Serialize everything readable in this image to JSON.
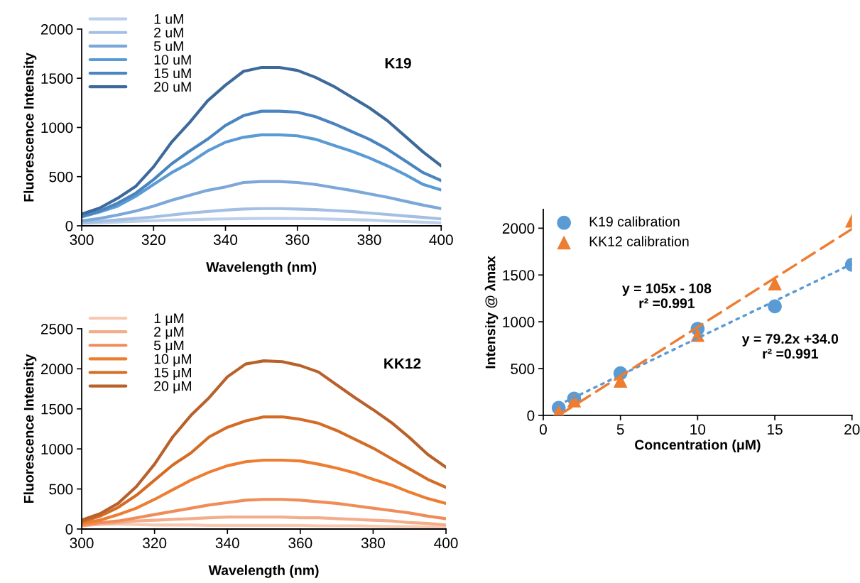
{
  "chart_data": [
    {
      "type": "line",
      "title": "K19",
      "xlabel": "Wavelength (nm)",
      "ylabel": "Fluorescence Intensity",
      "xlim": [
        300,
        400
      ],
      "xticks": [
        300,
        320,
        340,
        360,
        380,
        400
      ],
      "ylim": [
        0,
        2000
      ],
      "yticks": [
        0,
        500,
        1000,
        1500,
        2000
      ],
      "grid": false,
      "legend": "top left",
      "line_style": "solid",
      "marker": "none",
      "x": [
        300,
        305,
        310,
        315,
        320,
        325,
        330,
        335,
        340,
        345,
        350,
        355,
        360,
        365,
        370,
        375,
        380,
        385,
        390,
        395,
        400
      ],
      "series": [
        {
          "name": "1 uM",
          "color": "#bdd0ea",
          "values": [
            25,
            30,
            38,
            45,
            52,
            58,
            62,
            67,
            70,
            73,
            75,
            75,
            74,
            72,
            68,
            63,
            58,
            50,
            43,
            37,
            30
          ]
        },
        {
          "name": "2 uM",
          "color": "#a3bfe3",
          "values": [
            30,
            45,
            60,
            75,
            90,
            110,
            130,
            145,
            160,
            170,
            175,
            175,
            170,
            165,
            155,
            145,
            130,
            115,
            100,
            85,
            70
          ]
        },
        {
          "name": "5 uM",
          "color": "#7ba7d9",
          "values": [
            50,
            75,
            110,
            150,
            200,
            260,
            310,
            360,
            395,
            440,
            450,
            450,
            440,
            420,
            390,
            360,
            325,
            290,
            250,
            210,
            175
          ]
        },
        {
          "name": "10 uM",
          "color": "#5b9bd5",
          "values": [
            90,
            140,
            200,
            300,
            420,
            540,
            640,
            760,
            850,
            900,
            925,
            925,
            915,
            880,
            820,
            760,
            690,
            610,
            520,
            420,
            365
          ]
        },
        {
          "name": "15 uM",
          "color": "#4a85c0",
          "values": [
            100,
            150,
            230,
            330,
            470,
            630,
            760,
            880,
            1020,
            1120,
            1165,
            1165,
            1155,
            1110,
            1040,
            960,
            880,
            780,
            660,
            540,
            460
          ]
        },
        {
          "name": "20 uM",
          "color": "#3d6a9b",
          "values": [
            120,
            180,
            280,
            400,
            600,
            850,
            1050,
            1270,
            1430,
            1570,
            1610,
            1610,
            1580,
            1510,
            1420,
            1310,
            1200,
            1070,
            910,
            750,
            610
          ]
        }
      ]
    },
    {
      "type": "line",
      "title": "KK12",
      "xlabel": "Wavelength (nm)",
      "ylabel": "Fluorescence Intensity",
      "xlim": [
        300,
        400
      ],
      "xticks": [
        300,
        320,
        340,
        360,
        380,
        400
      ],
      "ylim": [
        0,
        2500
      ],
      "yticks": [
        0,
        500,
        1000,
        1500,
        2000,
        2500
      ],
      "grid": false,
      "legend": "top left",
      "line_style": "solid",
      "marker": "none",
      "x": [
        300,
        305,
        310,
        315,
        320,
        325,
        330,
        335,
        340,
        345,
        350,
        355,
        360,
        365,
        370,
        375,
        380,
        385,
        390,
        395,
        400
      ],
      "series": [
        {
          "name": "1 μM",
          "color": "#f8c9b0",
          "values": [
            60,
            60,
            60,
            55,
            50,
            50,
            50,
            45,
            45,
            45,
            45,
            45,
            45,
            40,
            40,
            40,
            35,
            30,
            30,
            25,
            20
          ]
        },
        {
          "name": "2 μM",
          "color": "#f3ad8a",
          "values": [
            40,
            60,
            80,
            100,
            110,
            120,
            130,
            140,
            150,
            150,
            150,
            150,
            140,
            140,
            130,
            120,
            110,
            100,
            80,
            70,
            50
          ]
        },
        {
          "name": "5 μM",
          "color": "#ef8c5a",
          "values": [
            50,
            80,
            100,
            140,
            180,
            220,
            260,
            300,
            330,
            360,
            370,
            370,
            360,
            340,
            320,
            290,
            260,
            230,
            200,
            160,
            130
          ]
        },
        {
          "name": "10 μM",
          "color": "#ed7d31",
          "values": [
            70,
            110,
            180,
            260,
            370,
            490,
            610,
            710,
            790,
            840,
            860,
            860,
            850,
            810,
            760,
            700,
            620,
            550,
            460,
            380,
            320
          ]
        },
        {
          "name": "15 μM",
          "color": "#d46c25",
          "values": [
            90,
            160,
            270,
            420,
            610,
            800,
            950,
            1150,
            1270,
            1350,
            1400,
            1400,
            1370,
            1320,
            1230,
            1120,
            1010,
            880,
            750,
            620,
            520
          ]
        },
        {
          "name": "20 μM",
          "color": "#b8612a",
          "values": [
            110,
            190,
            320,
            530,
            810,
            1150,
            1420,
            1640,
            1900,
            2060,
            2100,
            2090,
            2040,
            1960,
            1800,
            1640,
            1490,
            1330,
            1140,
            930,
            770
          ]
        }
      ]
    },
    {
      "type": "scatter",
      "xlabel": "Concentration (μM)",
      "ylabel": "Intensity @ λmax",
      "xlim": [
        0,
        20
      ],
      "xticks": [
        0,
        5,
        10,
        15,
        20
      ],
      "ylim": [
        0,
        2200
      ],
      "yticks": [
        0,
        500,
        1000,
        1500,
        2000
      ],
      "grid": false,
      "legend": "top left",
      "annotations": [
        "y = 105x - 108\nr² =0.991",
        "y = 79.2x +34.0\nr² =0.991"
      ],
      "series": [
        {
          "name": "K19 calibration",
          "color": "#5b9bd5",
          "marker": "circle",
          "x": [
            1,
            2,
            5,
            10,
            15,
            20
          ],
          "values": [
            80,
            180,
            450,
            925,
            1165,
            1610
          ]
        },
        {
          "name": "KK12 calibration",
          "color": "#ed7d31",
          "marker": "triangle",
          "x": [
            1,
            2,
            5,
            10,
            15,
            20
          ],
          "values": [
            40,
            160,
            370,
            860,
            1410,
            2080
          ]
        },
        {
          "type": "line",
          "color": "#5b9bd5",
          "line_style": "dotted",
          "x": [
            1,
            20
          ],
          "values": [
            113,
            1618
          ]
        },
        {
          "type": "line",
          "color": "#ed7d31",
          "line_style": "dashed",
          "x": [
            1,
            20
          ],
          "values": [
            0,
            1992
          ]
        }
      ]
    }
  ]
}
